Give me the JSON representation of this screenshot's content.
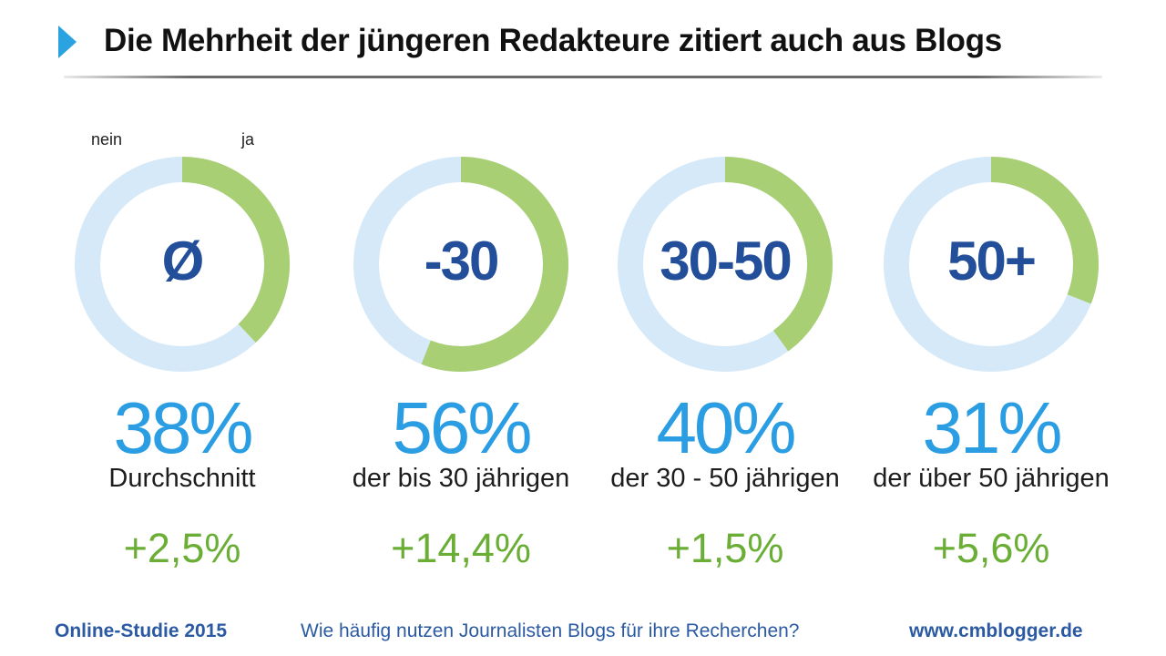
{
  "header": {
    "title": "Die Mehrheit der jüngeren Redakteure zitiert auch aus Blogs"
  },
  "legend": {
    "nein": "nein",
    "ja": "ja"
  },
  "chart_data": {
    "type": "donut",
    "title": "Die Mehrheit der jüngeren Redakteure zitiert auch aus Blogs",
    "series_labels": [
      "nein",
      "ja"
    ],
    "colors": {
      "ja": "#a9cf74",
      "nein": "#d6e9f8"
    },
    "groups": [
      {
        "center_label": "Ø",
        "ja": 38,
        "nein": 62,
        "percent_label": "38%",
        "description": "Durchschnitt",
        "change": "+2,5%"
      },
      {
        "center_label": "-30",
        "ja": 56,
        "nein": 44,
        "percent_label": "56%",
        "description": "der bis 30 jährigen",
        "change": "+14,4%"
      },
      {
        "center_label": "30-50",
        "ja": 40,
        "nein": 60,
        "percent_label": "40%",
        "description": "der 30 - 50 jährigen",
        "change": "+1,5%"
      },
      {
        "center_label": "50+",
        "ja": 31,
        "nein": 69,
        "percent_label": "31%",
        "description": "der über 50 jährigen",
        "change": "+5,6%"
      }
    ]
  },
  "footer": {
    "left": "Online-Studie 2015",
    "middle": "Wie häufig nutzen Journalisten Blogs für ihre Recherchen?",
    "right": "www.cmblogger.de"
  }
}
